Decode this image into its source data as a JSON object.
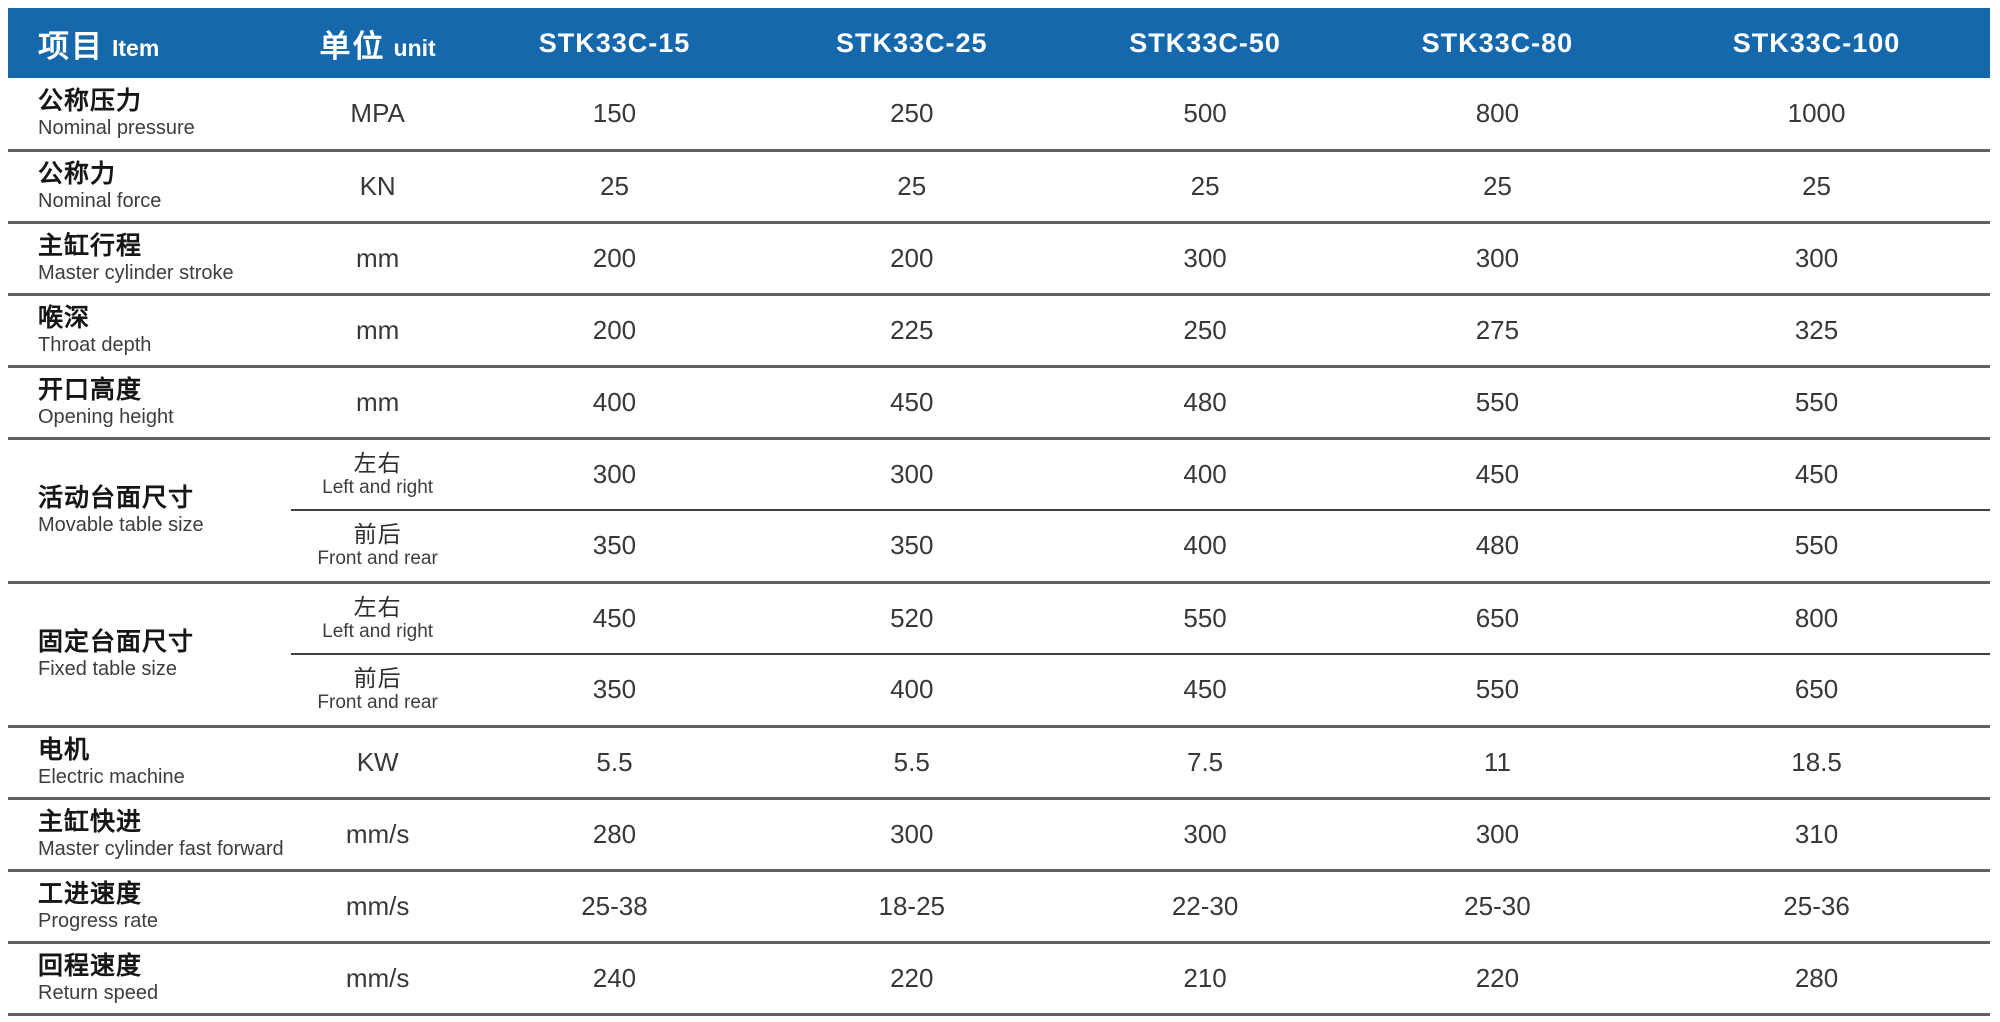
{
  "colors": {
    "header_bg": "#1568ab",
    "header_text": "#ffffff",
    "label_text": "#161616",
    "sub_label_text": "#3d3d3d",
    "value_text": "#383838",
    "divider": "#5f5f5f"
  },
  "table": {
    "header": {
      "item_cn": "项目",
      "item_en": "Item",
      "unit_cn": "单位",
      "unit_en": "unit",
      "models": [
        "STK33C-15",
        "STK33C-25",
        "STK33C-50",
        "STK33C-80",
        "STK33C-100"
      ]
    },
    "rows": [
      {
        "cn": "公称压力",
        "en": "Nominal pressure",
        "unit": "MPA",
        "values": [
          "150",
          "250",
          "500",
          "800",
          "1000"
        ]
      },
      {
        "cn": "公称力",
        "en": "Nominal force",
        "unit": "KN",
        "values": [
          "25",
          "25",
          "25",
          "25",
          "25"
        ]
      },
      {
        "cn": "主缸行程",
        "en": "Master cylinder stroke",
        "unit": "mm",
        "values": [
          "200",
          "200",
          "300",
          "300",
          "300"
        ]
      },
      {
        "cn": "喉深",
        "en": "Throat depth",
        "unit": "mm",
        "values": [
          "200",
          "225",
          "250",
          "275",
          "325"
        ]
      },
      {
        "cn": "开口高度",
        "en": "Opening height",
        "unit": "mm",
        "values": [
          "400",
          "450",
          "480",
          "550",
          "550"
        ]
      },
      {
        "cn": "活动台面尺寸",
        "en": "Movable table size",
        "sub_rows": [
          {
            "cn": "左右",
            "en": "Left and right",
            "values": [
              "300",
              "300",
              "400",
              "450",
              "450"
            ]
          },
          {
            "cn": "前后",
            "en": "Front and rear",
            "values": [
              "350",
              "350",
              "400",
              "480",
              "550"
            ]
          }
        ]
      },
      {
        "cn": "固定台面尺寸",
        "en": "Fixed table size",
        "sub_rows": [
          {
            "cn": "左右",
            "en": "Left and right",
            "values": [
              "450",
              "520",
              "550",
              "650",
              "800"
            ]
          },
          {
            "cn": "前后",
            "en": "Front and rear",
            "values": [
              "350",
              "400",
              "450",
              "550",
              "650"
            ]
          }
        ]
      },
      {
        "cn": "电机",
        "en": "Electric machine",
        "unit": "KW",
        "values": [
          "5.5",
          "5.5",
          "7.5",
          "11",
          "18.5"
        ]
      },
      {
        "cn": "主缸快进",
        "en": "Master cylinder fast forward",
        "unit": "mm/s",
        "values": [
          "280",
          "300",
          "300",
          "300",
          "310"
        ]
      },
      {
        "cn": "工进速度",
        "en": "Progress rate",
        "unit": "mm/s",
        "values": [
          "25-38",
          "18-25",
          "22-30",
          "25-30",
          "25-36"
        ]
      },
      {
        "cn": "回程速度",
        "en": "Return speed",
        "unit": "mm/s",
        "values": [
          "240",
          "220",
          "210",
          "220",
          "280"
        ]
      }
    ]
  }
}
